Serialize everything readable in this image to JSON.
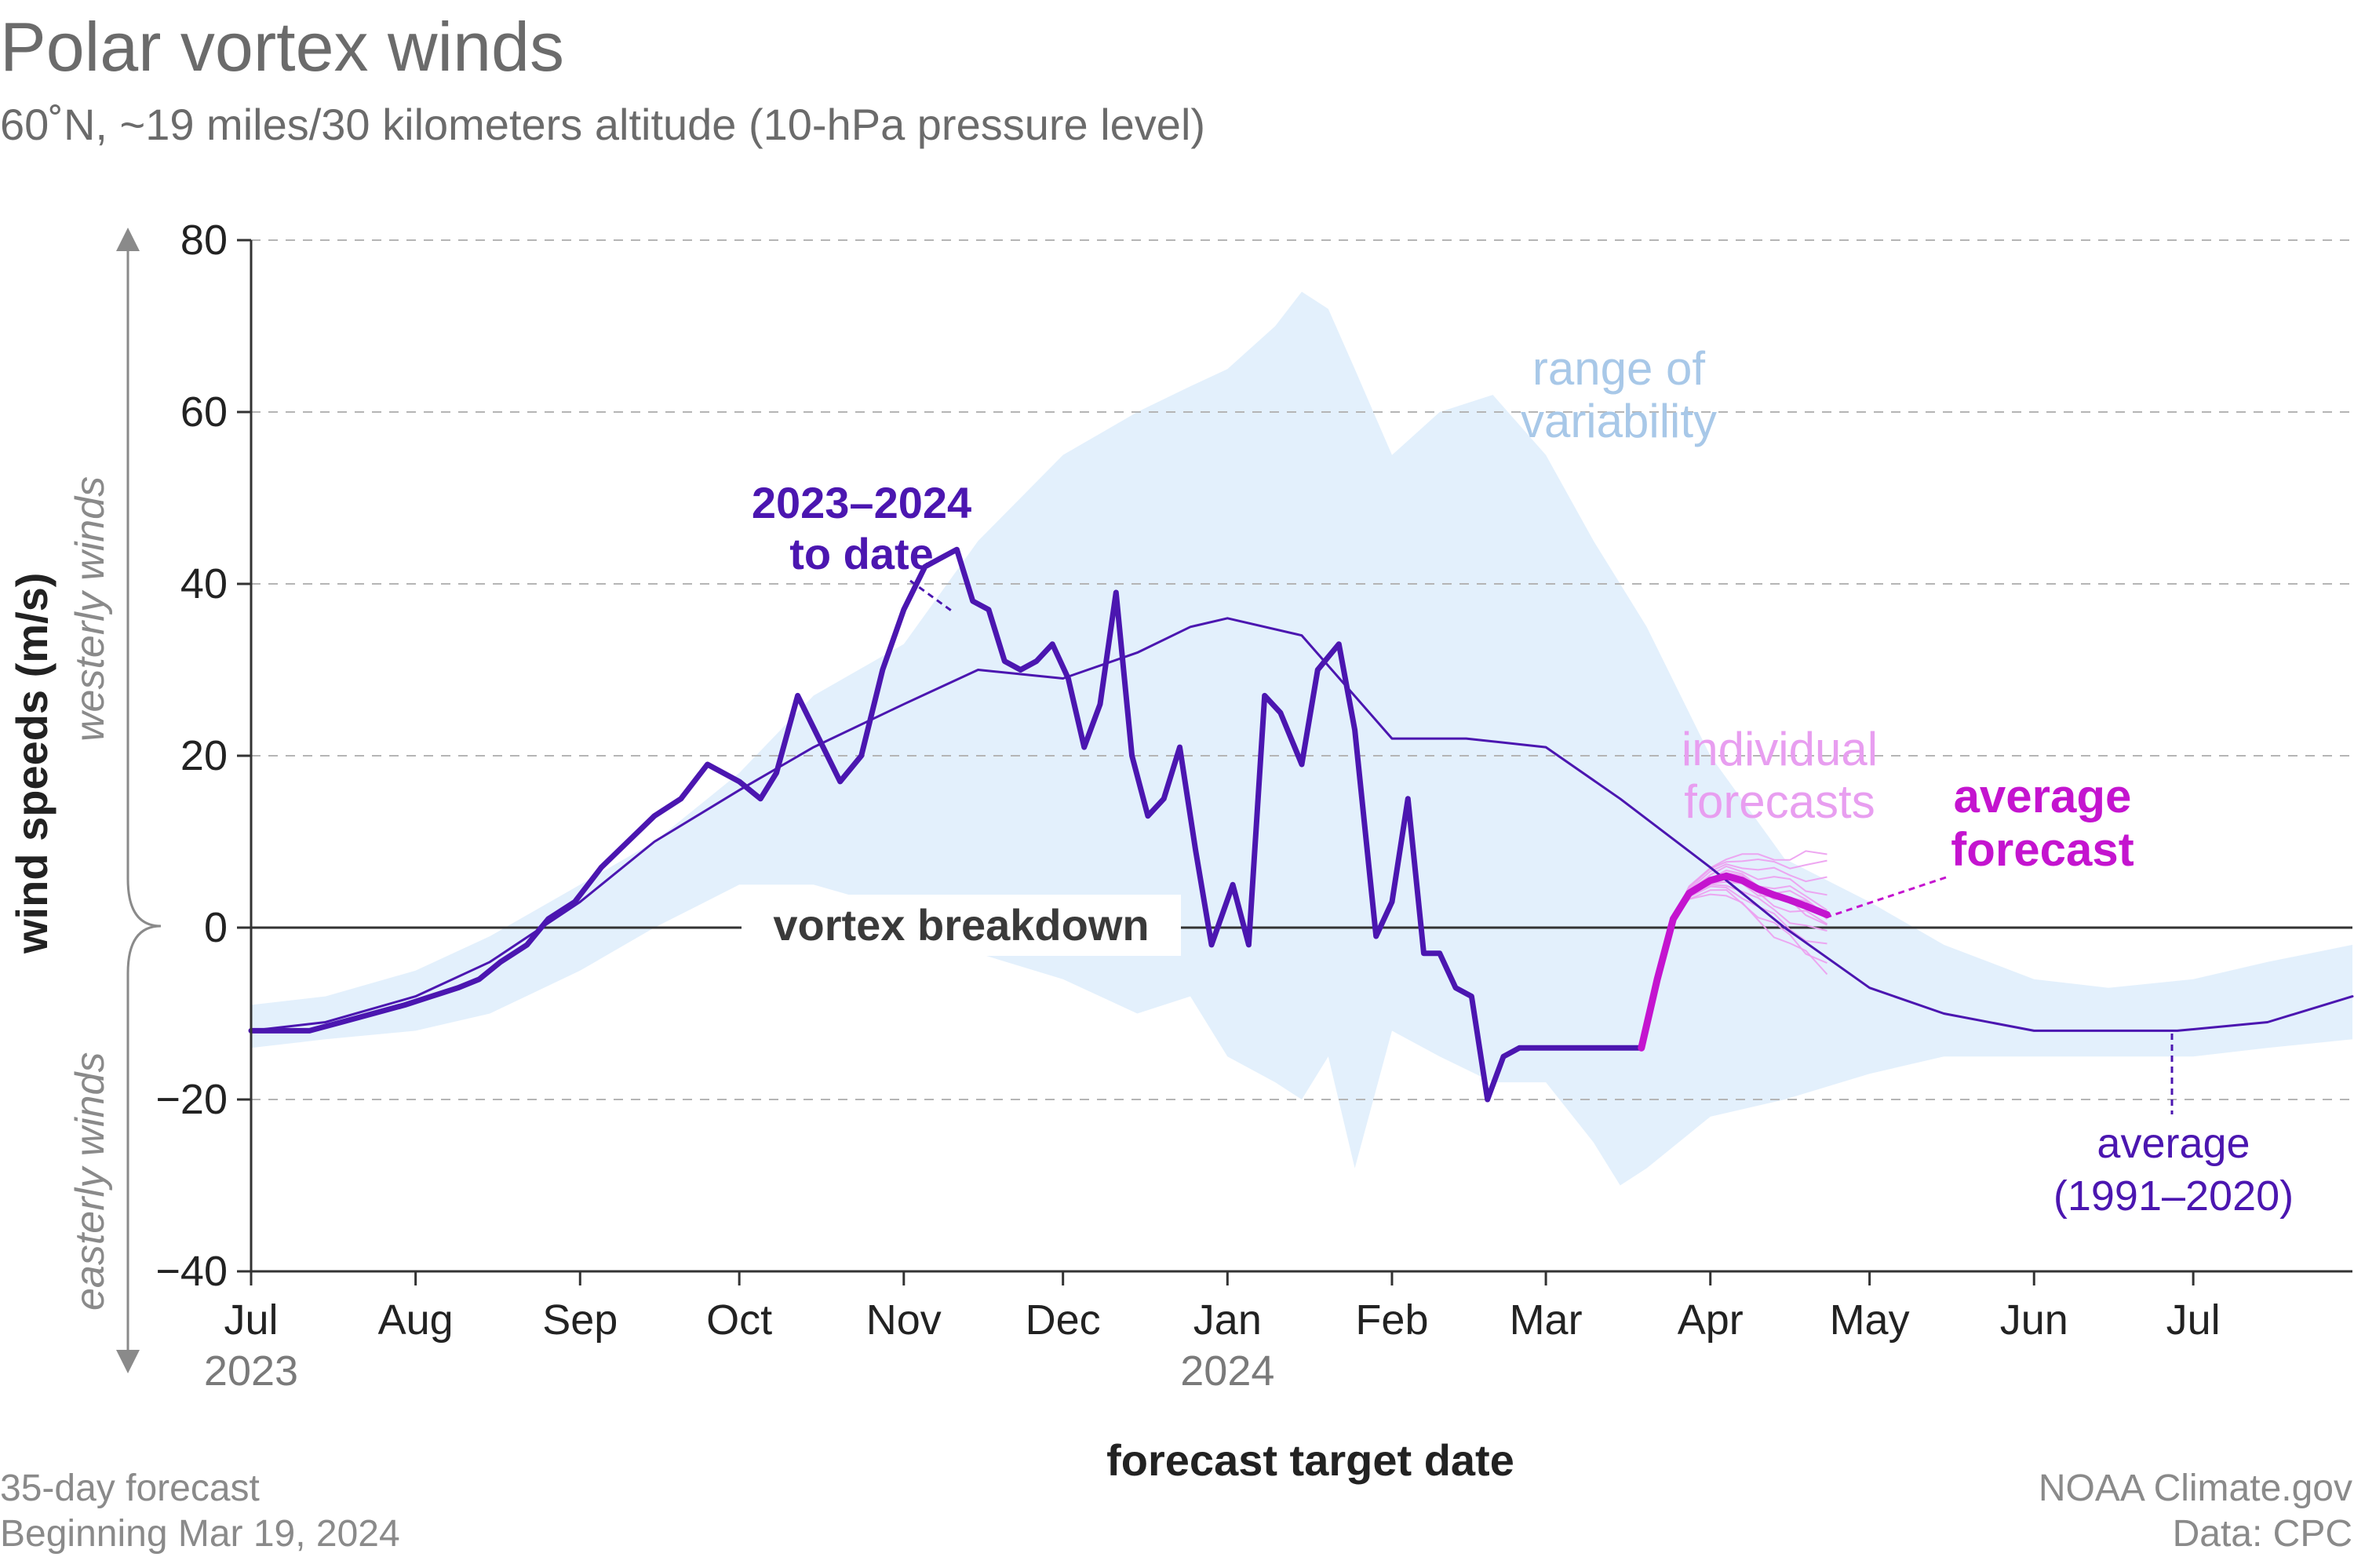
{
  "header": {
    "title": "Polar vortex winds",
    "subtitle": "60˚N, ~19 miles/30 kilometers altitude (10-hPa pressure level)"
  },
  "footer": {
    "left_line1": "35-day forecast",
    "left_line2": "Beginning Mar 19, 2024",
    "right_line1": "NOAA Climate.gov",
    "right_line2": "Data: CPC"
  },
  "colors": {
    "observed": "#4b16b0",
    "average": "#4b16b0",
    "average_forecast": "#c414cf",
    "individual_forecasts": "#ec9df0",
    "range_fill": "#e3f0fc",
    "grid": "#b5b5b5",
    "zero_line": "#333333",
    "axis": "#333333"
  },
  "chart_data": {
    "type": "line",
    "xlabel": "forecast target date",
    "ylabel": "wind speeds (m/s)",
    "ylim": [
      -40,
      80
    ],
    "yticks": [
      -40,
      -20,
      0,
      20,
      40,
      60,
      80
    ],
    "xlim": [
      "2023-07-01",
      "2024-07-31"
    ],
    "x_ticks": [
      {
        "date": "2023-07-01",
        "label": "Jul",
        "year": "2023"
      },
      {
        "date": "2023-08-01",
        "label": "Aug",
        "year": ""
      },
      {
        "date": "2023-09-01",
        "label": "Sep",
        "year": ""
      },
      {
        "date": "2023-10-01",
        "label": "Oct",
        "year": ""
      },
      {
        "date": "2023-11-01",
        "label": "Nov",
        "year": ""
      },
      {
        "date": "2023-12-01",
        "label": "Dec",
        "year": ""
      },
      {
        "date": "2024-01-01",
        "label": "Jan",
        "year": "2024"
      },
      {
        "date": "2024-02-01",
        "label": "Feb",
        "year": ""
      },
      {
        "date": "2024-03-01",
        "label": "Mar",
        "year": ""
      },
      {
        "date": "2024-04-01",
        "label": "Apr",
        "year": ""
      },
      {
        "date": "2024-05-01",
        "label": "May",
        "year": ""
      },
      {
        "date": "2024-06-01",
        "label": "Jun",
        "year": ""
      },
      {
        "date": "2024-07-01",
        "label": "Jul",
        "year": ""
      }
    ],
    "grid": "horizontal dashed",
    "direction_labels": {
      "upper": "westerly winds",
      "lower": "easterly winds"
    },
    "annotations": {
      "observed_line1": "2023–2024",
      "observed_line2": "to date",
      "range_line1": "range of",
      "range_line2": "variability",
      "indiv_line1": "individual",
      "indiv_line2": "forecasts",
      "avgfc_line1": "average",
      "avgfc_line2": "forecast",
      "avg_line1": "average",
      "avg_line2": "(1991–2020)",
      "breakdown": "vortex breakdown"
    },
    "range_of_variability": {
      "x": [
        "2023-07-01",
        "2023-07-15",
        "2023-08-01",
        "2023-08-15",
        "2023-09-01",
        "2023-09-15",
        "2023-10-01",
        "2023-10-15",
        "2023-11-01",
        "2023-11-15",
        "2023-12-01",
        "2023-12-15",
        "2023-12-25",
        "2024-01-01",
        "2024-01-10",
        "2024-01-15",
        "2024-01-20",
        "2024-01-25",
        "2024-02-01",
        "2024-02-10",
        "2024-02-20",
        "2024-03-01",
        "2024-03-10",
        "2024-03-15",
        "2024-03-20",
        "2024-04-01",
        "2024-04-15",
        "2024-05-01",
        "2024-05-15",
        "2024-06-01",
        "2024-06-15",
        "2024-07-01",
        "2024-07-15",
        "2024-07-31"
      ],
      "upper": [
        -9,
        -8,
        -5,
        -1,
        5,
        10,
        18,
        27,
        33,
        45,
        55,
        60,
        63,
        65,
        70,
        74,
        72,
        65,
        55,
        60,
        62,
        55,
        45,
        40,
        35,
        20,
        8,
        3,
        -2,
        -6,
        -7,
        -6,
        -4,
        -2
      ],
      "lower": [
        -14,
        -13,
        -12,
        -10,
        -5,
        0,
        5,
        5,
        2,
        -3,
        -6,
        -10,
        -8,
        -15,
        -18,
        -20,
        -15,
        -28,
        -12,
        -15,
        -18,
        -18,
        -25,
        -30,
        -28,
        -22,
        -20,
        -17,
        -15,
        -15,
        -15,
        -15,
        -14,
        -13
      ]
    },
    "series": [
      {
        "name": "average (1991–2020)",
        "x": [
          "2023-07-01",
          "2023-07-15",
          "2023-08-01",
          "2023-08-15",
          "2023-09-01",
          "2023-09-15",
          "2023-10-01",
          "2023-10-15",
          "2023-11-01",
          "2023-11-15",
          "2023-12-01",
          "2023-12-15",
          "2023-12-25",
          "2024-01-01",
          "2024-01-15",
          "2024-02-01",
          "2024-02-15",
          "2024-03-01",
          "2024-03-15",
          "2024-04-01",
          "2024-04-15",
          "2024-05-01",
          "2024-05-15",
          "2024-06-01",
          "2024-06-15",
          "2024-06-28",
          "2024-07-15",
          "2024-07-31"
        ],
        "values": [
          -12,
          -11,
          -8,
          -4,
          3,
          10,
          16,
          21,
          26,
          30,
          29,
          32,
          35,
          36,
          34,
          22,
          22,
          21,
          15,
          7,
          0,
          -7,
          -10,
          -12,
          -12,
          -12,
          -11,
          -8
        ]
      },
      {
        "name": "2023–2024 to date",
        "x": [
          "2023-07-01",
          "2023-07-06",
          "2023-07-12",
          "2023-07-18",
          "2023-07-24",
          "2023-07-30",
          "2023-08-04",
          "2023-08-09",
          "2023-08-13",
          "2023-08-17",
          "2023-08-22",
          "2023-08-26",
          "2023-08-31",
          "2023-09-05",
          "2023-09-10",
          "2023-09-15",
          "2023-09-20",
          "2023-09-25",
          "2023-10-01",
          "2023-10-05",
          "2023-10-08",
          "2023-10-12",
          "2023-10-16",
          "2023-10-20",
          "2023-10-24",
          "2023-10-28",
          "2023-11-01",
          "2023-11-05",
          "2023-11-08",
          "2023-11-11",
          "2023-11-14",
          "2023-11-17",
          "2023-11-20",
          "2023-11-23",
          "2023-11-26",
          "2023-11-29",
          "2023-12-02",
          "2023-12-05",
          "2023-12-08",
          "2023-12-11",
          "2023-12-14",
          "2023-12-17",
          "2023-12-20",
          "2023-12-23",
          "2023-12-26",
          "2023-12-29",
          "2024-01-02",
          "2024-01-05",
          "2024-01-08",
          "2024-01-11",
          "2024-01-15",
          "2024-01-18",
          "2024-01-22",
          "2024-01-25",
          "2024-01-29",
          "2024-02-01",
          "2024-02-04",
          "2024-02-07",
          "2024-02-10",
          "2024-02-13",
          "2024-02-16",
          "2024-02-19",
          "2024-02-22",
          "2024-02-25",
          "2024-02-29",
          "2024-03-03",
          "2024-03-06",
          "2024-03-09",
          "2024-03-12",
          "2024-03-15",
          "2024-03-19"
        ],
        "values": [
          -12,
          -12,
          -12,
          -11,
          -10,
          -9,
          -8,
          -7,
          -6,
          -4,
          -2,
          1,
          3,
          7,
          10,
          13,
          15,
          19,
          17,
          15,
          18,
          27,
          22,
          17,
          20,
          30,
          37,
          42,
          43,
          44,
          38,
          37,
          31,
          30,
          31,
          33,
          29,
          21,
          26,
          39,
          20,
          13,
          15,
          21,
          9,
          -2,
          5,
          -2,
          27,
          25,
          19,
          30,
          33,
          23,
          -1,
          3,
          15,
          -3,
          -3,
          -7,
          -8,
          -20,
          -15,
          -14,
          -14,
          -14,
          -14,
          -14,
          -14,
          -14,
          -14
        ]
      },
      {
        "name": "average forecast",
        "x": [
          "2024-03-19",
          "2024-03-22",
          "2024-03-25",
          "2024-03-28",
          "2024-04-01",
          "2024-04-04",
          "2024-04-07",
          "2024-04-10",
          "2024-04-13",
          "2024-04-16",
          "2024-04-19",
          "2024-04-23"
        ],
        "values": [
          -14,
          -6,
          1,
          4,
          5.5,
          6,
          5.5,
          4.5,
          3.8,
          3.2,
          2.5,
          1.5
        ]
      }
    ]
  }
}
